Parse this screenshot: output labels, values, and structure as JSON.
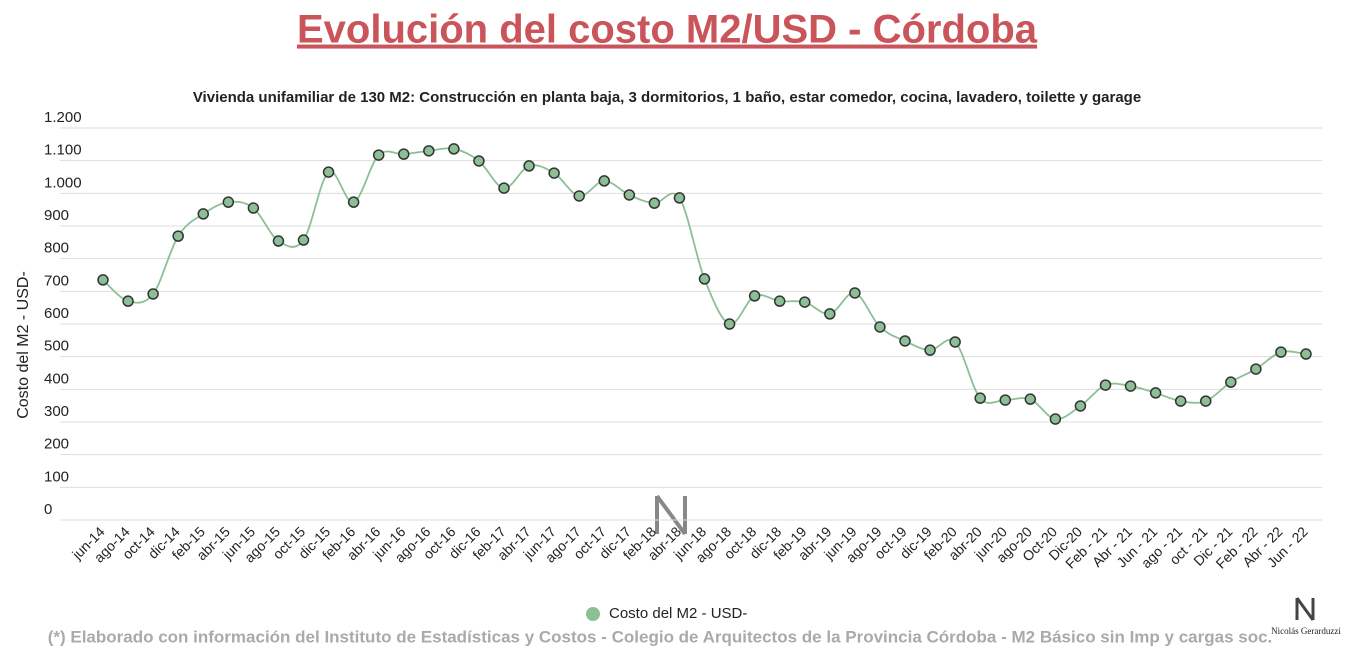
{
  "chart_data": {
    "type": "line",
    "title": "Evolución del costo M2/USD - Córdoba",
    "subtitle": "Vivienda unifamiliar de 130 M2: Construcción en planta baja, 3 dormitorios, 1 baño, estar comedor, cocina, lavadero, toilette y garage",
    "ylabel": "Costo del M2 - USD-",
    "footnote": "(*) Elaborado con información del Instituto de Estadísticas y Costos - Colegio de Arquitectos de la Provincia Córdoba - M2 Básico sin Imp y cargas soc.",
    "credit": "Nicolás Gerarduzzi",
    "categories": [
      "jun-14",
      "ago-14",
      "oct-14",
      "dic-14",
      "feb-15",
      "abr-15",
      "jun-15",
      "ago-15",
      "oct-15",
      "dic-15",
      "feb-16",
      "abr-16",
      "jun-16",
      "ago-16",
      "oct-16",
      "dic-16",
      "feb-17",
      "abr-17",
      "jun-17",
      "ago-17",
      "oct-17",
      "dic-17",
      "feb-18",
      "abr-18",
      "jun-18",
      "ago-18",
      "oct-18",
      "dic-18",
      "feb-19",
      "abr-19",
      "jun-19",
      "ago-19",
      "oct-19",
      "dic-19",
      "feb-20",
      "abr-20",
      "jun-20",
      "ago-20",
      "Oct-20",
      "Dic-20",
      "Feb - 21",
      "Abr - 21",
      "Jun - 21",
      "ago - 21",
      "oct - 21",
      "Dic - 21",
      "Feb - 22",
      "Abr - 22",
      "Jun - 22"
    ],
    "series": [
      {
        "name": "Costo del M2 - USD-",
        "color": "#8dbf96",
        "values": [
          735,
          670,
          692,
          869,
          937,
          973,
          955,
          854,
          857,
          1065,
          973,
          1117,
          1120,
          1130,
          1136,
          1099,
          1016,
          1084,
          1062,
          992,
          1038,
          995,
          970,
          986,
          738,
          600,
          686,
          670,
          667,
          631,
          695,
          591,
          548,
          520,
          545,
          373,
          367,
          370,
          309,
          349,
          413,
          410,
          389,
          364,
          364,
          422,
          462,
          514,
          508
        ]
      }
    ],
    "ylim": [
      0,
      1200
    ],
    "yticks": [
      0,
      100,
      200,
      300,
      400,
      500,
      600,
      700,
      800,
      900,
      {
        "value": 1000,
        "label": "1.000"
      },
      {
        "value": 1100,
        "label": "1.100"
      },
      {
        "value": 1200,
        "label": "1.200"
      }
    ],
    "grid": true,
    "legend": "bottom"
  }
}
